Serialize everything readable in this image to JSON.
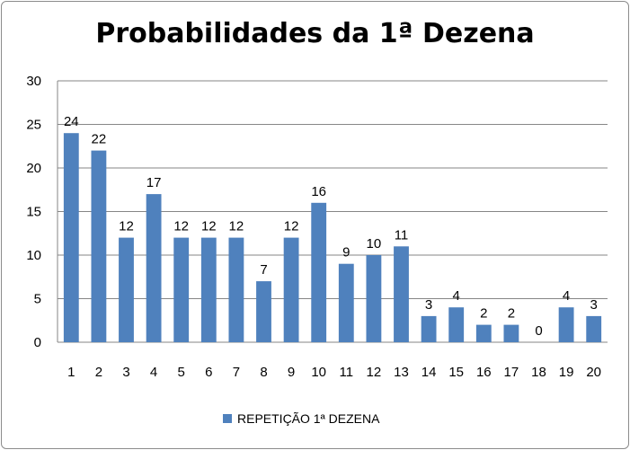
{
  "chart_data": {
    "type": "bar",
    "title": "Probabilidades da 1ª Dezena",
    "xlabel": "",
    "ylabel": "",
    "categories": [
      "1",
      "2",
      "3",
      "4",
      "5",
      "6",
      "7",
      "8",
      "9",
      "10",
      "11",
      "12",
      "13",
      "14",
      "15",
      "16",
      "17",
      "18",
      "19",
      "20"
    ],
    "series": [
      {
        "name": "REPETIÇÃO 1ª DEZENA",
        "values": [
          24,
          22,
          12,
          17,
          12,
          12,
          12,
          7,
          12,
          16,
          9,
          10,
          11,
          3,
          4,
          2,
          2,
          0,
          4,
          3
        ],
        "color": "#4f81bd"
      }
    ],
    "ylim": [
      0,
      30
    ],
    "yticks": [
      "0",
      "5",
      "10",
      "15",
      "20",
      "25",
      "30"
    ],
    "grid": true,
    "data_labels": true,
    "legend_position": "bottom",
    "colors": {
      "bar": "#4f81bd",
      "grid": "#868686",
      "axis": "#868686"
    }
  }
}
